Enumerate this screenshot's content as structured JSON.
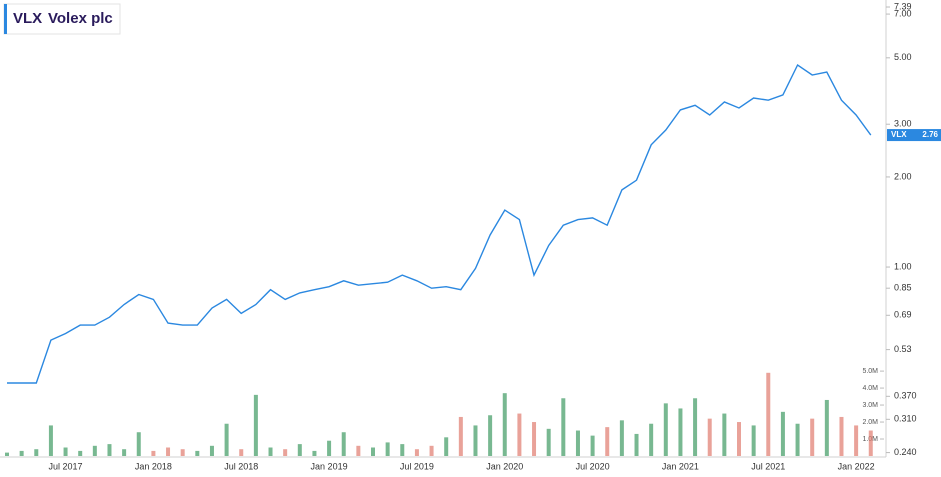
{
  "chart_data": {
    "type": "line",
    "symbol": "VLX",
    "title": "Volex plc",
    "categories": [
      null,
      null,
      null,
      null,
      "Jul 2017",
      null,
      null,
      null,
      null,
      null,
      "Jan 2018",
      null,
      null,
      null,
      null,
      null,
      "Jul 2018",
      null,
      null,
      null,
      null,
      null,
      "Jan 2019",
      null,
      null,
      null,
      null,
      null,
      "Jul 2019",
      null,
      null,
      null,
      null,
      null,
      "Jan 2020",
      null,
      null,
      null,
      null,
      null,
      "Jul 2020",
      null,
      null,
      null,
      null,
      null,
      "Jan 2021",
      null,
      null,
      null,
      null,
      null,
      "Jul 2021",
      null,
      null,
      null,
      null,
      null,
      "Jan 2022",
      null
    ],
    "series": [
      {
        "name": "VLX",
        "color": "#2b88e0",
        "values": [
          0.41,
          0.41,
          0.41,
          0.57,
          0.6,
          0.64,
          0.64,
          0.68,
          0.75,
          0.81,
          0.78,
          0.65,
          0.64,
          0.64,
          0.73,
          0.78,
          0.7,
          0.75,
          0.84,
          0.78,
          0.82,
          0.84,
          0.86,
          0.9,
          0.87,
          0.88,
          0.89,
          0.94,
          0.9,
          0.85,
          0.86,
          0.84,
          0.99,
          1.28,
          1.55,
          1.44,
          0.94,
          1.18,
          1.38,
          1.44,
          1.46,
          1.38,
          1.81,
          1.95,
          2.56,
          2.87,
          3.35,
          3.47,
          3.22,
          3.56,
          3.4,
          3.67,
          3.61,
          3.76,
          4.73,
          4.38,
          4.48,
          3.61,
          3.22,
          2.76
        ]
      }
    ],
    "volume": {
      "up_color": "#3f9a63",
      "down_color": "#e07a6e",
      "values": [
        200000,
        300000,
        400000,
        1800000,
        500000,
        300000,
        600000,
        700000,
        400000,
        1400000,
        300000,
        500000,
        400000,
        300000,
        600000,
        1900000,
        400000,
        3600000,
        500000,
        400000,
        700000,
        300000,
        900000,
        1400000,
        600000,
        500000,
        800000,
        700000,
        400000,
        600000,
        1100000,
        2300000,
        1800000,
        2400000,
        3700000,
        2500000,
        2000000,
        1600000,
        3400000,
        1500000,
        1200000,
        1700000,
        2100000,
        1300000,
        1900000,
        3100000,
        2800000,
        3400000,
        2200000,
        2500000,
        2000000,
        1800000,
        4900000,
        2600000,
        1900000,
        2200000,
        3300000,
        2300000,
        1800000,
        1500000
      ],
      "vlim": [
        0,
        5300000
      ],
      "vticks": [
        {
          "value": 1000000,
          "label": "1.0M"
        },
        {
          "value": 2000000,
          "label": "2.0M"
        },
        {
          "value": 3000000,
          "label": "3.0M"
        },
        {
          "value": 4000000,
          "label": "4.0M"
        },
        {
          "value": 5000000,
          "label": "5.0M"
        }
      ]
    },
    "log_scale": true,
    "ylim": [
      0.232,
      7.8
    ],
    "yticks": [
      7.39,
      {
        "value": 7,
        "label": "7.00"
      },
      {
        "value": 5,
        "label": "5.00"
      },
      {
        "value": 3,
        "label": "3.00"
      },
      {
        "value": 2,
        "label": "2.00"
      },
      {
        "value": 1,
        "label": "1.00"
      },
      0.85,
      0.69,
      0.53,
      {
        "value": 0.37,
        "label": "0.370"
      },
      {
        "value": 0.31,
        "label": "0.310"
      },
      {
        "value": 0.24,
        "label": "0.240"
      }
    ]
  }
}
